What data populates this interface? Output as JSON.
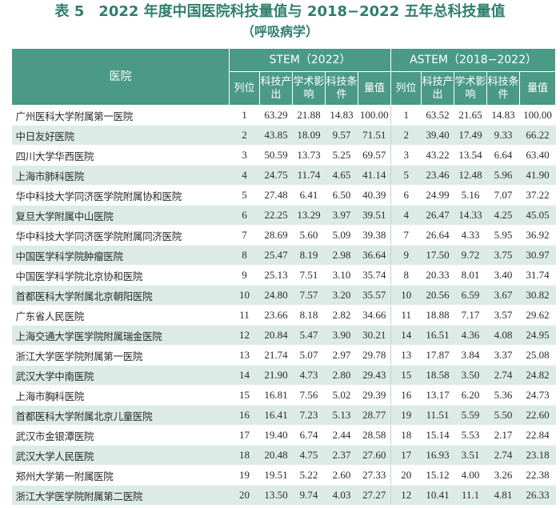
{
  "title": "表 5　2022 年度中国医院科技量值与 2018−2022 五年总科技量值",
  "subtitle": "（呼吸病学）",
  "table": {
    "hospital_header": "医院",
    "group1": "STEM（2022）",
    "group2": "ASTEM（2018−2022）",
    "subheaders": [
      "列位",
      "科技产出",
      "学术影响",
      "科技条件",
      "量值"
    ],
    "rows": [
      {
        "name": "广州医科大学附属第一医院",
        "rank": "1",
        "out": "63.29",
        "imp": "21.88",
        "cond": "14.83",
        "val": "100.00",
        "arank": "1",
        "aout": "63.52",
        "aimp": "21.65",
        "acond": "14.83",
        "aval": "100.00"
      },
      {
        "name": "中日友好医院",
        "rank": "2",
        "out": "43.85",
        "imp": "18.09",
        "cond": "9.57",
        "val": "71.51",
        "arank": "2",
        "aout": "39.40",
        "aimp": "17.49",
        "acond": "9.33",
        "aval": "66.22"
      },
      {
        "name": "四川大学华西医院",
        "rank": "3",
        "out": "50.59",
        "imp": "13.73",
        "cond": "5.25",
        "val": "69.57",
        "arank": "3",
        "aout": "43.22",
        "aimp": "13.54",
        "acond": "6.64",
        "aval": "63.40"
      },
      {
        "name": "上海市肺科医院",
        "rank": "4",
        "out": "24.75",
        "imp": "11.74",
        "cond": "4.65",
        "val": "41.14",
        "arank": "5",
        "aout": "23.46",
        "aimp": "12.48",
        "acond": "5.96",
        "aval": "41.90"
      },
      {
        "name": "华中科技大学同济医学院附属协和医院",
        "rank": "5",
        "out": "27.48",
        "imp": "6.41",
        "cond": "6.50",
        "val": "40.39",
        "arank": "6",
        "aout": "24.99",
        "aimp": "5.16",
        "acond": "7.07",
        "aval": "37.22"
      },
      {
        "name": "复旦大学附属中山医院",
        "rank": "6",
        "out": "22.25",
        "imp": "13.29",
        "cond": "3.97",
        "val": "39.51",
        "arank": "4",
        "aout": "26.47",
        "aimp": "14.33",
        "acond": "4.25",
        "aval": "45.05"
      },
      {
        "name": "华中科技大学同济医学院附属同济医院",
        "rank": "7",
        "out": "28.69",
        "imp": "5.60",
        "cond": "5.09",
        "val": "39.38",
        "arank": "7",
        "aout": "26.64",
        "aimp": "4.33",
        "acond": "5.95",
        "aval": "36.92"
      },
      {
        "name": "中国医学科学院肿瘤医院",
        "rank": "8",
        "out": "25.47",
        "imp": "8.19",
        "cond": "2.98",
        "val": "36.64",
        "arank": "9",
        "aout": "17.50",
        "aimp": "9.72",
        "acond": "3.75",
        "aval": "30.97"
      },
      {
        "name": "中国医学科学院北京协和医院",
        "rank": "9",
        "out": "25.13",
        "imp": "7.51",
        "cond": "3.10",
        "val": "35.74",
        "arank": "8",
        "aout": "20.33",
        "aimp": "8.01",
        "acond": "3.40",
        "aval": "31.74"
      },
      {
        "name": "首都医科大学附属北京朝阳医院",
        "rank": "10",
        "out": "24.80",
        "imp": "7.57",
        "cond": "3.20",
        "val": "35.57",
        "arank": "10",
        "aout": "20.56",
        "aimp": "6.59",
        "acond": "3.67",
        "aval": "30.82"
      },
      {
        "name": "广东省人民医院",
        "rank": "11",
        "out": "23.66",
        "imp": "8.18",
        "cond": "2.82",
        "val": "34.66",
        "arank": "11",
        "aout": "18.88",
        "aimp": "7.17",
        "acond": "3.57",
        "aval": "29.62"
      },
      {
        "name": "上海交通大学医学院附属瑞金医院",
        "rank": "12",
        "out": "20.84",
        "imp": "5.47",
        "cond": "3.90",
        "val": "30.21",
        "arank": "14",
        "aout": "16.51",
        "aimp": "4.36",
        "acond": "4.08",
        "aval": "24.95"
      },
      {
        "name": "浙江大学医学院附属第一医院",
        "rank": "13",
        "out": "21.74",
        "imp": "5.07",
        "cond": "2.97",
        "val": "29.78",
        "arank": "13",
        "aout": "17.87",
        "aimp": "3.84",
        "acond": "3.37",
        "aval": "25.08"
      },
      {
        "name": "武汉大学中南医院",
        "rank": "14",
        "out": "21.90",
        "imp": "4.73",
        "cond": "2.80",
        "val": "29.43",
        "arank": "15",
        "aout": "18.58",
        "aimp": "3.50",
        "acond": "2.74",
        "aval": "24.82"
      },
      {
        "name": "上海市胸科医院",
        "rank": "15",
        "out": "16.81",
        "imp": "7.56",
        "cond": "5.02",
        "val": "29.39",
        "arank": "16",
        "aout": "13.17",
        "aimp": "6.20",
        "acond": "5.36",
        "aval": "24.73"
      },
      {
        "name": "首都医科大学附属北京儿童医院",
        "rank": "16",
        "out": "16.41",
        "imp": "7.23",
        "cond": "5.13",
        "val": "28.77",
        "arank": "19",
        "aout": "11.51",
        "aimp": "5.59",
        "acond": "5.50",
        "aval": "22.60"
      },
      {
        "name": "武汉市金银潭医院",
        "rank": "17",
        "out": "19.40",
        "imp": "6.74",
        "cond": "2.44",
        "val": "28.58",
        "arank": "18",
        "aout": "15.14",
        "aimp": "5.53",
        "acond": "2.17",
        "aval": "22.84"
      },
      {
        "name": "武汉大学人民医院",
        "rank": "18",
        "out": "20.48",
        "imp": "4.75",
        "cond": "2.37",
        "val": "27.60",
        "arank": "17",
        "aout": "16.93",
        "aimp": "3.51",
        "acond": "2.74",
        "aval": "23.18"
      },
      {
        "name": "郑州大学第一附属医院",
        "rank": "19",
        "out": "19.51",
        "imp": "5.22",
        "cond": "2.60",
        "val": "27.33",
        "arank": "20",
        "aout": "15.12",
        "aimp": "4.00",
        "acond": "3.26",
        "aval": "22.38"
      },
      {
        "name": "浙江大学医学院附属第二医院",
        "rank": "20",
        "out": "13.50",
        "imp": "9.74",
        "cond": "4.03",
        "val": "27.27",
        "arank": "12",
        "aout": "10.41",
        "aimp": "11.1",
        "acond": "4.81",
        "aval": "26.33"
      }
    ]
  }
}
